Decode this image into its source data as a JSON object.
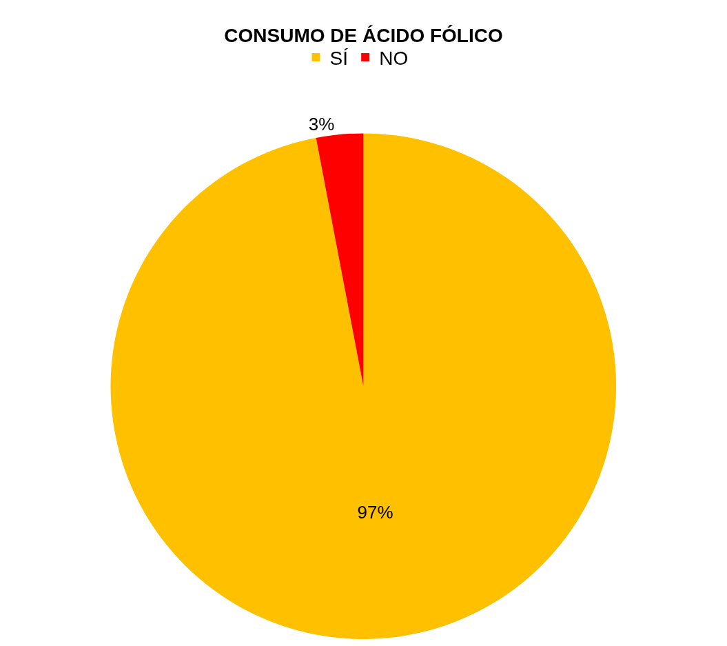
{
  "chart_data": {
    "type": "pie",
    "title": "CONSUMO DE ÁCIDO FÓLICO",
    "categories": [
      "SÍ",
      "NO"
    ],
    "values": [
      97,
      3
    ],
    "colors": [
      "#ffc000",
      "#ff0000"
    ],
    "value_labels": [
      "97%",
      "3%"
    ],
    "legend": "top"
  }
}
